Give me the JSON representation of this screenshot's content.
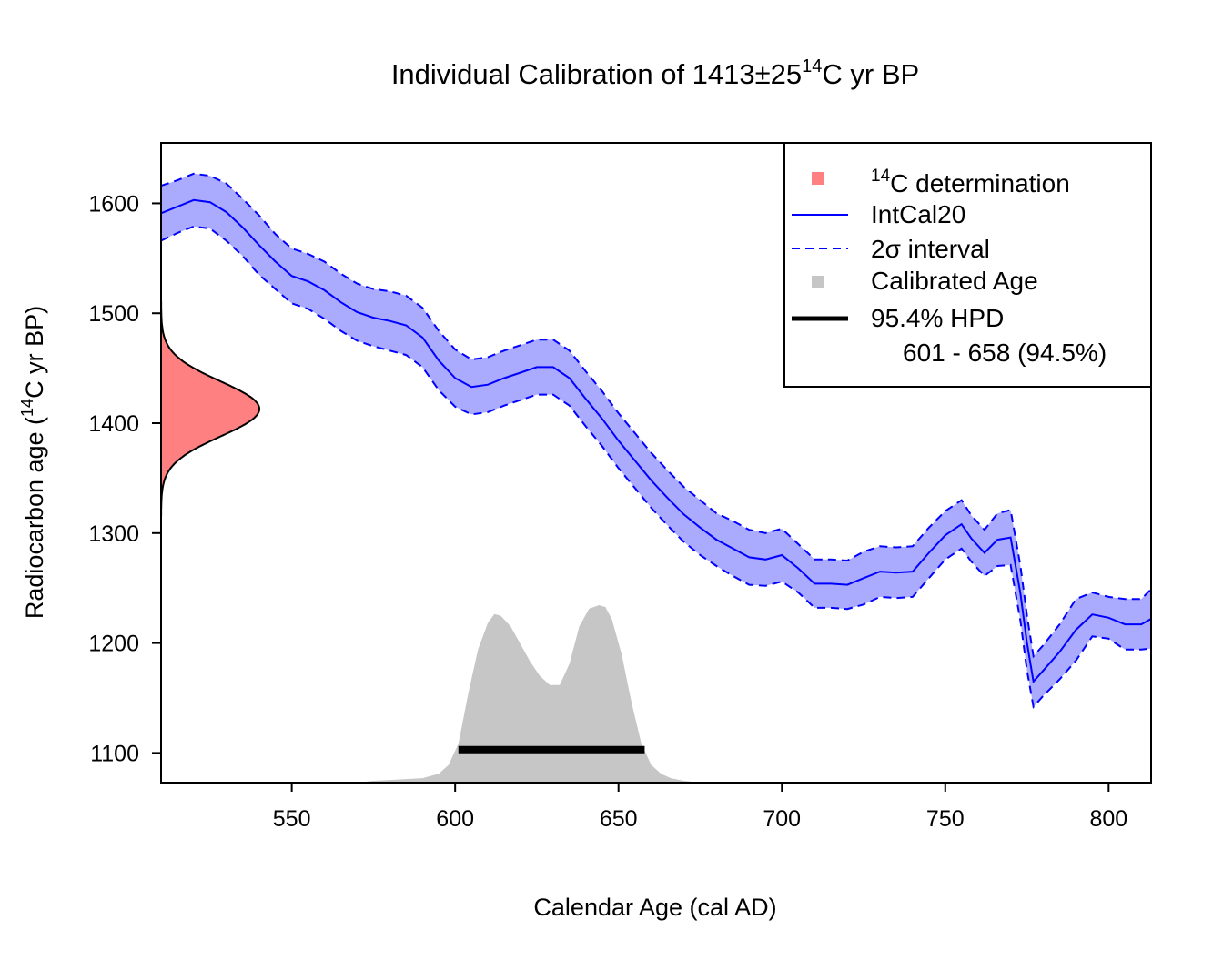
{
  "chart_data": {
    "type": "line",
    "title": {
      "main": "Individual Calibration of 1413±25",
      "sup": "14",
      "tail": "C yr BP"
    },
    "xlabel": "Calendar Age (cal AD)",
    "ylabel": {
      "pre": "Radiocarbon age (",
      "sup": "14",
      "post": "C yr BP)"
    },
    "xlim": [
      510,
      813
    ],
    "ylim": [
      1073,
      1655
    ],
    "xticks": [
      550,
      600,
      650,
      700,
      750,
      800
    ],
    "yticks": [
      1100,
      1200,
      1300,
      1400,
      1500,
      1600
    ],
    "grid": false,
    "legend_position": "top-right",
    "colors": {
      "determination": "#ff8080",
      "intcal": "#0000ff",
      "band": "#aaaaff",
      "calibrated": "#c6c6c6",
      "hpd": "#000000"
    },
    "legend": {
      "determination_sup": "14",
      "determination_text": "C determination",
      "intcal": "IntCal20",
      "interval": "2σ interval",
      "calibrated": "Calibrated Age",
      "hpd": "95.4% HPD",
      "hpd_range": "601 - 658 (94.5%)"
    },
    "determination": {
      "mean": 1413,
      "sd": 25
    },
    "intcal20": {
      "x": [
        510,
        515,
        520,
        525,
        530,
        535,
        540,
        545,
        550,
        555,
        560,
        565,
        570,
        575,
        580,
        585,
        590,
        595,
        600,
        605,
        610,
        615,
        620,
        625,
        630,
        635,
        640,
        645,
        650,
        655,
        660,
        665,
        670,
        675,
        680,
        685,
        690,
        695,
        700,
        705,
        710,
        715,
        720,
        725,
        730,
        735,
        740,
        745,
        750,
        755,
        758,
        762,
        766,
        770,
        773,
        775,
        777,
        780,
        785,
        790,
        795,
        800,
        805,
        810,
        813
      ],
      "mean": [
        1591,
        1597,
        1603,
        1601,
        1592,
        1578,
        1562,
        1547,
        1534,
        1529,
        1521,
        1510,
        1501,
        1496,
        1493,
        1489,
        1478,
        1457,
        1441,
        1433,
        1435,
        1441,
        1446,
        1451,
        1451,
        1441,
        1422,
        1404,
        1384,
        1366,
        1348,
        1332,
        1317,
        1305,
        1294,
        1286,
        1278,
        1276,
        1280,
        1268,
        1254,
        1254,
        1253,
        1259,
        1265,
        1264,
        1265,
        1282,
        1298,
        1308,
        1295,
        1282,
        1294,
        1296,
        1245,
        1200,
        1165,
        1175,
        1192,
        1212,
        1226,
        1223,
        1217,
        1217,
        1222
      ],
      "upper": [
        1616,
        1621,
        1627,
        1625,
        1618,
        1604,
        1589,
        1572,
        1559,
        1554,
        1547,
        1536,
        1527,
        1522,
        1520,
        1516,
        1505,
        1484,
        1467,
        1458,
        1460,
        1466,
        1471,
        1476,
        1476,
        1466,
        1447,
        1429,
        1409,
        1391,
        1373,
        1357,
        1342,
        1330,
        1318,
        1311,
        1303,
        1300,
        1304,
        1290,
        1276,
        1276,
        1275,
        1283,
        1288,
        1287,
        1288,
        1305,
        1320,
        1330,
        1316,
        1303,
        1318,
        1321,
        1270,
        1225,
        1188,
        1198,
        1217,
        1240,
        1246,
        1242,
        1240,
        1240,
        1249
      ],
      "lower": [
        1566,
        1573,
        1579,
        1577,
        1566,
        1552,
        1535,
        1522,
        1509,
        1504,
        1495,
        1484,
        1475,
        1470,
        1466,
        1462,
        1451,
        1430,
        1415,
        1408,
        1410,
        1416,
        1421,
        1426,
        1426,
        1416,
        1397,
        1379,
        1359,
        1341,
        1323,
        1307,
        1292,
        1280,
        1270,
        1261,
        1253,
        1252,
        1256,
        1246,
        1232,
        1232,
        1231,
        1235,
        1242,
        1241,
        1242,
        1259,
        1276,
        1286,
        1274,
        1261,
        1270,
        1271,
        1220,
        1175,
        1142,
        1152,
        1167,
        1184,
        1206,
        1204,
        1194,
        1194,
        1195
      ]
    },
    "calibrated_density": {
      "x": [
        570,
        575,
        580,
        585,
        590,
        595,
        598,
        601,
        604,
        607,
        610,
        612,
        614,
        617,
        620,
        623,
        626,
        629,
        632,
        635,
        638,
        641,
        644,
        646,
        648,
        651,
        654,
        657,
        660,
        663,
        666,
        670,
        675
      ],
      "density": [
        0.0,
        0.01,
        0.015,
        0.02,
        0.025,
        0.05,
        0.1,
        0.22,
        0.5,
        0.75,
        0.9,
        0.95,
        0.94,
        0.88,
        0.78,
        0.68,
        0.6,
        0.55,
        0.55,
        0.67,
        0.88,
        0.98,
        1.0,
        0.99,
        0.92,
        0.72,
        0.45,
        0.22,
        0.1,
        0.05,
        0.025,
        0.01,
        0.0
      ]
    },
    "hpd_interval": {
      "start": 601,
      "end": 658,
      "percent": 94.5
    }
  }
}
